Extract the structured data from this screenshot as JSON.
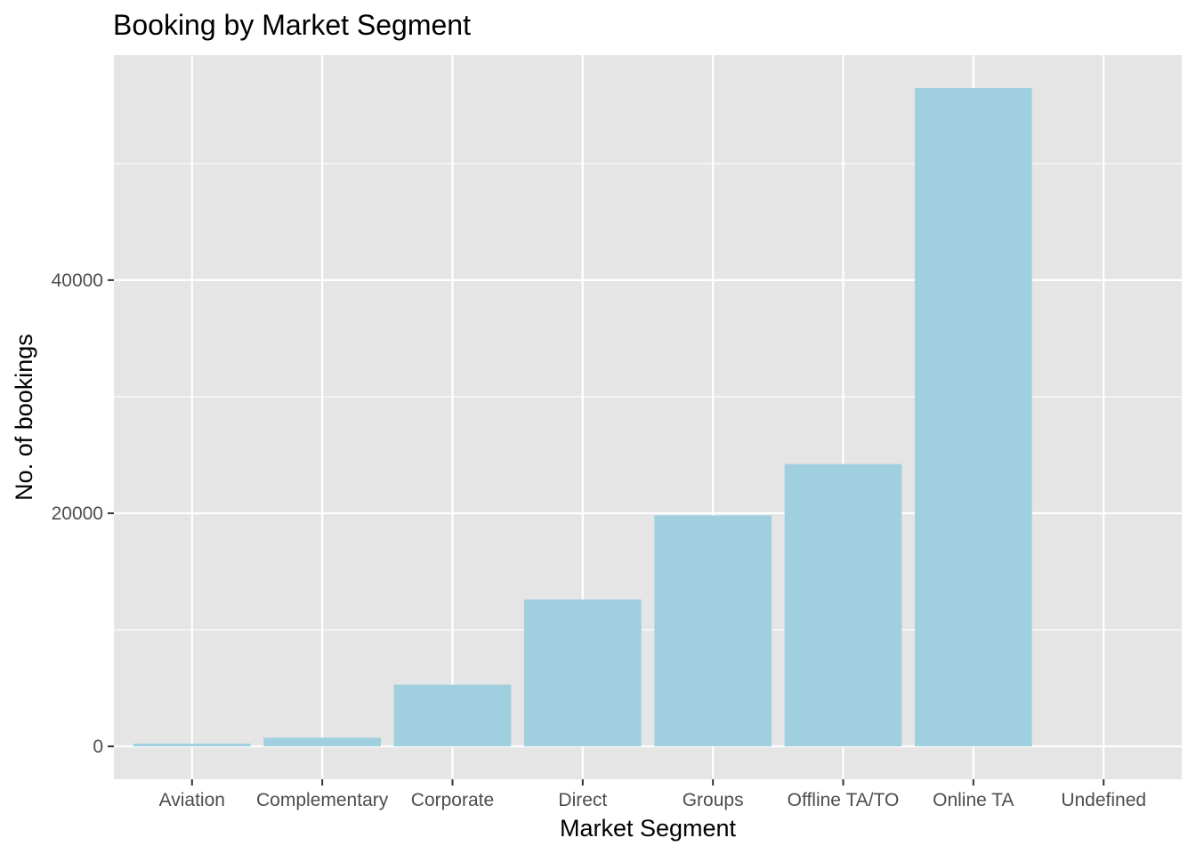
{
  "chart_data": {
    "type": "bar",
    "title": "Booking by Market Segment",
    "xlabel": "Market Segment",
    "ylabel": "No. of bookings",
    "categories": [
      "Aviation",
      "Complementary",
      "Corporate",
      "Direct",
      "Groups",
      "Offline TA/TO",
      "Online TA",
      "Undefined"
    ],
    "values": [
      235,
      743,
      5295,
      12606,
      19811,
      24219,
      56477,
      2
    ],
    "y_ticks": [
      0,
      20000,
      40000
    ],
    "ylim": [
      -2824,
      59301
    ],
    "bar_color": "#a0cfe0",
    "panel_color": "#e5e5e5",
    "grid_color": "#ffffff",
    "grid": true,
    "legend": "none"
  }
}
